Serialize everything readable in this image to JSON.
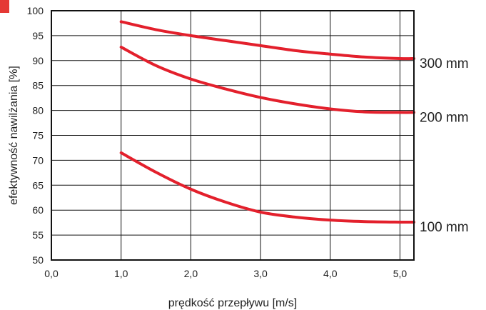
{
  "corner_mark_color": "#e53935",
  "chart_data": {
    "type": "line",
    "title": "",
    "xlabel": "prędkość przepływu  [m/s]",
    "ylabel": "efektywność nawilżania [%]",
    "xlim": [
      0,
      5.2
    ],
    "ylim": [
      50,
      100
    ],
    "x_ticks": [
      0,
      1,
      2,
      3,
      4,
      5
    ],
    "x_tick_labels": [
      "0,0",
      "1,0",
      "2,0",
      "3,0",
      "4,0",
      "5,0"
    ],
    "y_ticks": [
      50,
      55,
      60,
      65,
      70,
      75,
      80,
      85,
      90,
      95,
      100
    ],
    "y_tick_labels": [
      "50",
      "55",
      "60",
      "65",
      "70",
      "75",
      "80",
      "85",
      "90",
      "95",
      "100"
    ],
    "grid": true,
    "line_color": "#e3202c",
    "series": [
      {
        "name": "300 mm",
        "x": [
          1.0,
          1.5,
          2.0,
          2.5,
          3.0,
          3.5,
          4.0,
          4.5,
          5.0,
          5.2
        ],
        "y": [
          97.8,
          96.2,
          95.0,
          94.0,
          93.0,
          92.0,
          91.3,
          90.7,
          90.4,
          90.4
        ]
      },
      {
        "name": "200 mm",
        "x": [
          1.0,
          1.5,
          2.0,
          2.5,
          3.0,
          3.5,
          4.0,
          4.5,
          5.0,
          5.2
        ],
        "y": [
          92.7,
          89.0,
          86.3,
          84.3,
          82.6,
          81.3,
          80.3,
          79.7,
          79.6,
          79.6
        ]
      },
      {
        "name": "100 mm",
        "x": [
          1.0,
          1.5,
          2.0,
          2.5,
          3.0,
          3.5,
          4.0,
          4.5,
          5.0,
          5.2
        ],
        "y": [
          71.5,
          67.6,
          64.2,
          61.6,
          59.6,
          58.6,
          58.0,
          57.7,
          57.6,
          57.6
        ]
      }
    ]
  }
}
